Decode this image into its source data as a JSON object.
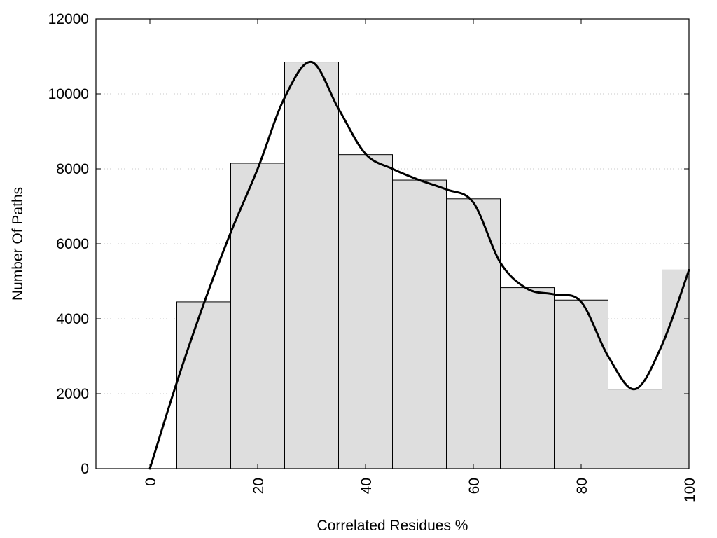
{
  "chart_data": {
    "type": "bar",
    "title": "",
    "xlabel": "Correlated Residues %",
    "ylabel": "Number Of Paths",
    "xlim": [
      -10,
      100
    ],
    "ylim": [
      0,
      12000
    ],
    "grid": true,
    "x_ticks": [
      0,
      20,
      40,
      60,
      80,
      100
    ],
    "y_ticks": [
      0,
      2000,
      4000,
      6000,
      8000,
      10000,
      12000
    ],
    "bars": {
      "bin_edges": [
        5,
        15,
        25,
        35,
        45,
        55,
        65,
        75,
        85,
        95,
        100
      ],
      "values": [
        4450,
        8150,
        10850,
        8380,
        7700,
        7200,
        4830,
        4500,
        2120,
        5300
      ],
      "fill": "#dedede",
      "stroke": "#000000"
    },
    "curve": {
      "x": [
        0,
        5,
        10,
        15,
        20,
        25,
        30,
        35,
        40,
        45,
        50,
        55,
        60,
        65,
        70,
        75,
        80,
        85,
        90,
        95,
        100
      ],
      "y": [
        0,
        2300,
        4400,
        6300,
        8000,
        9900,
        10850,
        9600,
        8400,
        8000,
        7700,
        7450,
        7100,
        5500,
        4800,
        4650,
        4450,
        3000,
        2120,
        3300,
        5300
      ],
      "color": "#000000"
    }
  }
}
